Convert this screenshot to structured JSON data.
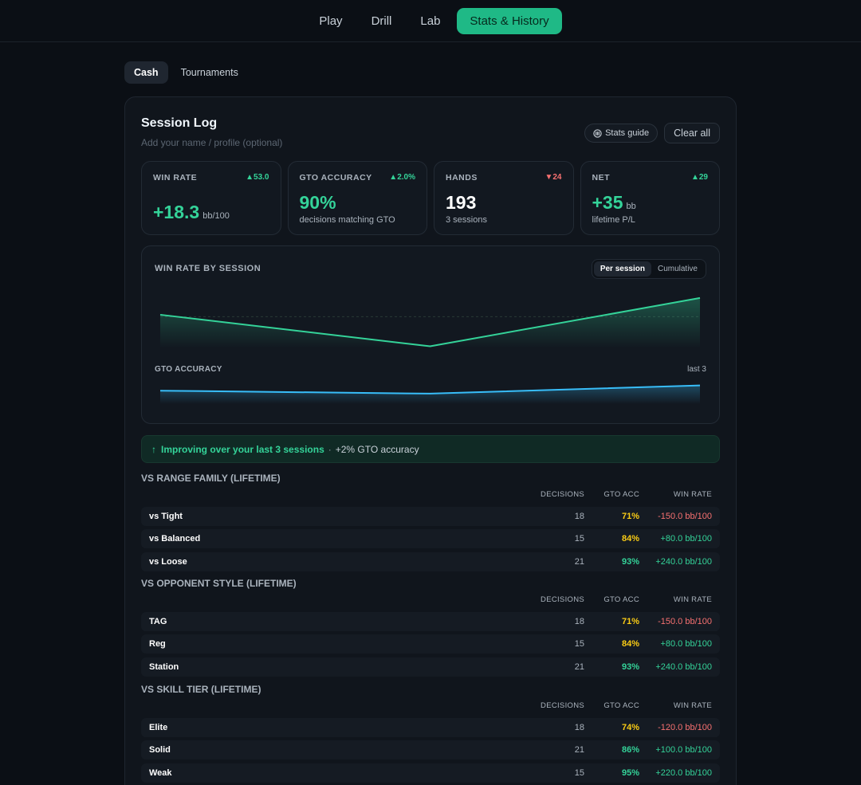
{
  "nav": {
    "items": [
      "Play",
      "Drill",
      "Lab",
      "Stats & History"
    ],
    "active_index": 3
  },
  "subtabs": {
    "items": [
      "Cash",
      "Tournaments"
    ],
    "active_index": 0
  },
  "header": {
    "title": "Session Log",
    "profile_placeholder": "Add your name / profile (optional)",
    "stats_guide_label": "Stats guide",
    "clear_all_label": "Clear all"
  },
  "kpis": [
    {
      "label": "WIN RATE",
      "delta": "▲53.0",
      "delta_dir": "up",
      "value": "+18.3",
      "unit": "bb/100",
      "sub": ""
    },
    {
      "label": "GTO ACCURACY",
      "delta": "▲2.0%",
      "delta_dir": "up",
      "value": "90%",
      "unit": "",
      "sub": "decisions matching GTO"
    },
    {
      "label": "HANDS",
      "delta": "▼24",
      "delta_dir": "down",
      "value": "193",
      "unit": "",
      "sub": "3 sessions"
    },
    {
      "label": "NET",
      "delta": "▲29",
      "delta_dir": "up",
      "value": "+35",
      "unit": "bb",
      "sub": "lifetime P/L"
    }
  ],
  "chart": {
    "title": "WIN RATE BY SESSION",
    "toggle_options": [
      "Per session",
      "Cumulative"
    ],
    "toggle_active": 0,
    "acc_title": "GTO ACCURACY",
    "acc_meta": "last 3"
  },
  "chart_data": [
    {
      "type": "area",
      "title": "WIN RATE BY SESSION",
      "x": [
        1,
        2,
        3
      ],
      "values": [
        10,
        -150,
        95
      ],
      "ylim": [
        -160,
        135
      ],
      "baseline": 0,
      "color": "#34d399"
    },
    {
      "type": "area",
      "title": "GTO ACCURACY",
      "x": [
        1,
        2,
        3
      ],
      "values": [
        88,
        84,
        95
      ],
      "ylim": [
        70,
        100
      ],
      "color": "#38bdf8"
    }
  ],
  "banner": {
    "arrow": "↑",
    "text": "Improving over your last 3 sessions",
    "sep": "·",
    "detail": "+2% GTO accuracy"
  },
  "tables": [
    {
      "title": "VS RANGE FAMILY (LIFETIME)",
      "headers": [
        "DECISIONS",
        "GTO ACC",
        "WIN RATE"
      ],
      "rows": [
        {
          "label": "vs Tight",
          "decisions": "18",
          "acc": "71%",
          "acc_color": "yellow",
          "win": "-150.0 bb/100",
          "win_color": "red"
        },
        {
          "label": "vs Balanced",
          "decisions": "15",
          "acc": "84%",
          "acc_color": "yellow",
          "win": "+80.0 bb/100",
          "win_color": "green"
        },
        {
          "label": "vs Loose",
          "decisions": "21",
          "acc": "93%",
          "acc_color": "green",
          "win": "+240.0 bb/100",
          "win_color": "green"
        }
      ]
    },
    {
      "title": "VS OPPONENT STYLE (LIFETIME)",
      "headers": [
        "DECISIONS",
        "GTO ACC",
        "WIN RATE"
      ],
      "rows": [
        {
          "label": "TAG",
          "decisions": "18",
          "acc": "71%",
          "acc_color": "yellow",
          "win": "-150.0 bb/100",
          "win_color": "red"
        },
        {
          "label": "Reg",
          "decisions": "15",
          "acc": "84%",
          "acc_color": "yellow",
          "win": "+80.0 bb/100",
          "win_color": "green"
        },
        {
          "label": "Station",
          "decisions": "21",
          "acc": "93%",
          "acc_color": "green",
          "win": "+240.0 bb/100",
          "win_color": "green"
        }
      ]
    },
    {
      "title": "VS SKILL TIER (LIFETIME)",
      "headers": [
        "DECISIONS",
        "GTO ACC",
        "WIN RATE"
      ],
      "rows": [
        {
          "label": "Elite",
          "decisions": "18",
          "acc": "74%",
          "acc_color": "yellow",
          "win": "-120.0 bb/100",
          "win_color": "red"
        },
        {
          "label": "Solid",
          "decisions": "21",
          "acc": "86%",
          "acc_color": "green",
          "win": "+100.0 bb/100",
          "win_color": "green"
        },
        {
          "label": "Weak",
          "decisions": "15",
          "acc": "95%",
          "acc_color": "green",
          "win": "+220.0 bb/100",
          "win_color": "green"
        }
      ]
    }
  ]
}
